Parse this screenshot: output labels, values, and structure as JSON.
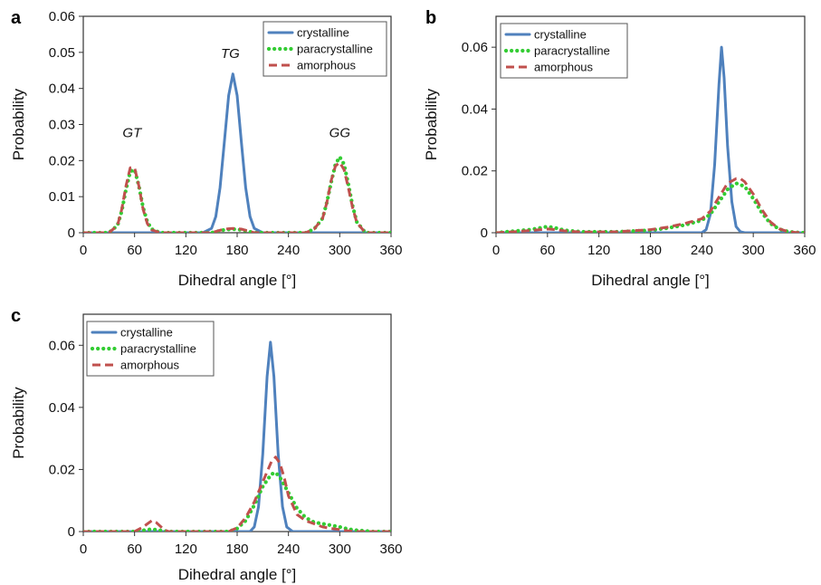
{
  "chart_data": [
    {
      "panel": "a",
      "type": "line",
      "xlabel": "Dihedral angle [°]",
      "ylabel": "Probability",
      "xlim": [
        0,
        360
      ],
      "ylim": [
        0,
        0.06
      ],
      "xticks": [
        "0",
        "60",
        "120",
        "180",
        "240",
        "300",
        "360"
      ],
      "yticks": [
        "0",
        "0.01",
        "0.02",
        "0.03",
        "0.04",
        "0.05",
        "0.06"
      ],
      "legend": "top-right",
      "grid": false,
      "annotations": [
        {
          "text": "GT",
          "x": 57,
          "y": 0.0265
        },
        {
          "text": "TG",
          "x": 172,
          "y": 0.0485
        },
        {
          "text": "GG",
          "x": 300,
          "y": 0.0265
        }
      ],
      "series": [
        {
          "name": "crystalline",
          "color": "#4f81bd",
          "style": "solid",
          "x": [
            0,
            140,
            150,
            155,
            160,
            165,
            170,
            175,
            180,
            185,
            190,
            195,
            200,
            210,
            360
          ],
          "y": [
            0,
            0,
            0.0012,
            0.0045,
            0.0125,
            0.025,
            0.038,
            0.044,
            0.038,
            0.025,
            0.0125,
            0.0045,
            0.0012,
            0,
            0
          ]
        },
        {
          "name": "paracrystalline",
          "color": "#33cc33",
          "style": "dotted",
          "x": [
            0,
            30,
            40,
            45,
            50,
            55,
            60,
            65,
            70,
            75,
            80,
            90,
            150,
            165,
            175,
            185,
            200,
            260,
            270,
            280,
            285,
            290,
            295,
            300,
            305,
            310,
            315,
            320,
            330,
            360
          ],
          "y": [
            0,
            0,
            0.002,
            0.006,
            0.012,
            0.017,
            0.0175,
            0.013,
            0.007,
            0.003,
            0.001,
            0,
            0,
            0.0008,
            0.001,
            0.0008,
            0,
            0,
            0.001,
            0.004,
            0.0085,
            0.014,
            0.019,
            0.021,
            0.019,
            0.0135,
            0.0075,
            0.003,
            0,
            0
          ]
        },
        {
          "name": "amorphous",
          "color": "#c0504d",
          "style": "dashed",
          "x": [
            0,
            30,
            40,
            45,
            50,
            55,
            60,
            65,
            70,
            75,
            80,
            90,
            150,
            165,
            175,
            185,
            200,
            260,
            270,
            280,
            285,
            290,
            295,
            300,
            305,
            310,
            315,
            320,
            330,
            360
          ],
          "y": [
            0,
            0,
            0.002,
            0.0065,
            0.013,
            0.018,
            0.018,
            0.013,
            0.0065,
            0.0025,
            0.0008,
            0,
            0,
            0.001,
            0.0012,
            0.001,
            0,
            0,
            0.001,
            0.004,
            0.0085,
            0.0145,
            0.0185,
            0.0195,
            0.0175,
            0.0125,
            0.007,
            0.0028,
            0,
            0
          ]
        }
      ]
    },
    {
      "panel": "b",
      "type": "line",
      "xlabel": "Dihedral angle [°]",
      "ylabel": "Probability",
      "xlim": [
        0,
        360
      ],
      "ylim": [
        0,
        0.07
      ],
      "xticks": [
        "0",
        "60",
        "120",
        "180",
        "240",
        "300",
        "360"
      ],
      "yticks": [
        "0",
        "0.02",
        "0.04",
        "0.06"
      ],
      "legend": "top-left",
      "grid": false,
      "series": [
        {
          "name": "crystalline",
          "color": "#4f81bd",
          "style": "solid",
          "x": [
            0,
            240,
            245,
            250,
            255,
            260,
            263,
            266,
            270,
            275,
            280,
            285,
            290,
            360
          ],
          "y": [
            0,
            0,
            0.001,
            0.006,
            0.022,
            0.048,
            0.06,
            0.05,
            0.028,
            0.01,
            0.002,
            0.0003,
            0,
            0
          ]
        },
        {
          "name": "paracrystalline",
          "color": "#33cc33",
          "style": "dotted",
          "x": [
            0,
            20,
            40,
            60,
            70,
            80,
            100,
            140,
            180,
            200,
            220,
            240,
            250,
            260,
            270,
            280,
            290,
            300,
            310,
            320,
            330,
            340,
            350,
            360
          ],
          "y": [
            0,
            0.0005,
            0.001,
            0.002,
            0.0015,
            0.0008,
            0.0003,
            0.0003,
            0.0008,
            0.0015,
            0.0025,
            0.004,
            0.006,
            0.01,
            0.014,
            0.016,
            0.015,
            0.011,
            0.0065,
            0.003,
            0.0012,
            0.0004,
            0.0001,
            0
          ]
        },
        {
          "name": "amorphous",
          "color": "#c0504d",
          "style": "dashed",
          "x": [
            0,
            20,
            40,
            60,
            70,
            80,
            100,
            140,
            180,
            200,
            220,
            240,
            250,
            260,
            270,
            280,
            285,
            290,
            300,
            310,
            320,
            330,
            340,
            350,
            360
          ],
          "y": [
            0,
            0.0003,
            0.0007,
            0.0012,
            0.001,
            0.0006,
            0.0002,
            0.0003,
            0.001,
            0.0018,
            0.003,
            0.0045,
            0.007,
            0.0115,
            0.016,
            0.0175,
            0.0175,
            0.0165,
            0.0125,
            0.0075,
            0.0035,
            0.0013,
            0.0004,
            0.0001,
            0
          ]
        }
      ]
    },
    {
      "panel": "c",
      "type": "line",
      "xlabel": "Dihedral angle [°]",
      "ylabel": "Probability",
      "xlim": [
        0,
        360
      ],
      "ylim": [
        0,
        0.07
      ],
      "xticks": [
        "0",
        "60",
        "120",
        "180",
        "240",
        "300",
        "360"
      ],
      "yticks": [
        "0",
        "0.02",
        "0.04",
        "0.06"
      ],
      "legend": "top-left",
      "grid": false,
      "series": [
        {
          "name": "crystalline",
          "color": "#4f81bd",
          "style": "solid",
          "x": [
            0,
            195,
            200,
            205,
            210,
            215,
            219,
            223,
            228,
            233,
            238,
            245,
            360
          ],
          "y": [
            0,
            0,
            0.0015,
            0.008,
            0.025,
            0.05,
            0.061,
            0.05,
            0.025,
            0.008,
            0.0015,
            0,
            0
          ]
        },
        {
          "name": "paracrystalline",
          "color": "#33cc33",
          "style": "dotted",
          "x": [
            0,
            60,
            80,
            100,
            170,
            180,
            190,
            200,
            210,
            220,
            225,
            230,
            240,
            250,
            260,
            270,
            280,
            290,
            300,
            310,
            320,
            330,
            340,
            360
          ],
          "y": [
            0,
            0,
            0.0008,
            0,
            0,
            0.001,
            0.0035,
            0.0085,
            0.0145,
            0.0185,
            0.019,
            0.0175,
            0.0125,
            0.0075,
            0.0045,
            0.003,
            0.0025,
            0.002,
            0.0015,
            0.0008,
            0.0004,
            0.0002,
            0,
            0
          ]
        },
        {
          "name": "amorphous",
          "color": "#c0504d",
          "style": "dashed",
          "x": [
            0,
            60,
            70,
            80,
            85,
            95,
            100,
            170,
            180,
            190,
            200,
            210,
            220,
            225,
            230,
            235,
            240,
            250,
            260,
            270,
            280,
            290,
            300,
            310,
            320,
            360
          ],
          "y": [
            0,
            0,
            0.0015,
            0.0035,
            0.003,
            0.0005,
            0,
            0,
            0.0012,
            0.0045,
            0.0095,
            0.016,
            0.0225,
            0.024,
            0.022,
            0.0175,
            0.0115,
            0.0055,
            0.0035,
            0.0025,
            0.0015,
            0.001,
            0.0006,
            0.0002,
            0,
            0
          ]
        }
      ]
    }
  ]
}
